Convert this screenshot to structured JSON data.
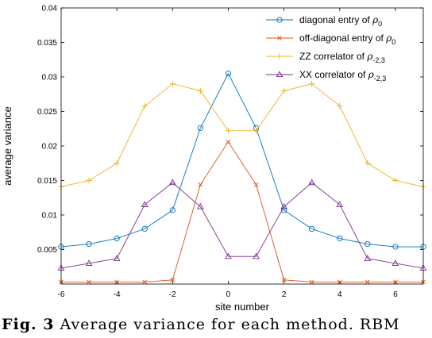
{
  "caption": {
    "prefix": "Fig. 3",
    "text": "Average variance for each method. RBM"
  },
  "chart_data": {
    "type": "line",
    "xlabel": "site number",
    "ylabel": "average variance",
    "xlim": [
      -6,
      7
    ],
    "ylim": [
      0,
      0.04
    ],
    "xticks": [
      -6,
      -4,
      -2,
      0,
      2,
      4,
      6
    ],
    "xtick_labels": [
      "-6",
      "-4",
      "-2",
      "0",
      "2",
      "4",
      "6"
    ],
    "yticks": [
      0.005,
      0.01,
      0.015,
      0.02,
      0.025,
      0.03,
      0.035,
      0.04
    ],
    "ytick_labels": [
      "0.005",
      "0.01",
      "0.015",
      "0.02",
      "0.025",
      "0.03",
      "0.035",
      "0.04"
    ],
    "grid": false,
    "legend_position": "top-right",
    "x": [
      -6,
      -5,
      -4,
      -3,
      -2,
      -1,
      0,
      1,
      2,
      3,
      4,
      5,
      6,
      7
    ],
    "series": [
      {
        "name": "diagonal entry of ρ0",
        "legend_main": "diagonal entry of ",
        "legend_symbol": "ρ",
        "legend_sub": "0",
        "color": "#0072BD",
        "marker": "circle",
        "values": [
          0.0054,
          0.0058,
          0.0066,
          0.008,
          0.0107,
          0.0226,
          0.0305,
          0.0226,
          0.0107,
          0.008,
          0.0066,
          0.0058,
          0.0054,
          0.0054
        ]
      },
      {
        "name": "off-diagonal entry of ρ0",
        "legend_main": "off-diagonal entry of ",
        "legend_symbol": "ρ",
        "legend_sub": "0",
        "color": "#D95319",
        "marker": "x",
        "values": [
          0.0003,
          0.0003,
          0.0003,
          0.0003,
          0.0006,
          0.0144,
          0.0206,
          0.0144,
          0.0006,
          0.0003,
          0.0003,
          0.0003,
          0.0003,
          0.0003
        ]
      },
      {
        "name": "ZZ correlator of ρ-2,3",
        "legend_main": "ZZ correlator of ",
        "legend_symbol": "ρ",
        "legend_sub": "-2,3",
        "color": "#EDB120",
        "marker": "plus",
        "values": [
          0.0141,
          0.015,
          0.0175,
          0.0258,
          0.029,
          0.028,
          0.0222,
          0.0222,
          0.028,
          0.029,
          0.0258,
          0.0175,
          0.015,
          0.0141
        ]
      },
      {
        "name": "XX correlator of ρ-2,3",
        "legend_main": "XX correlator of ",
        "legend_symbol": "ρ",
        "legend_sub": "-2,3",
        "color": "#7E2F8E",
        "marker": "triangle",
        "values": [
          0.0023,
          0.003,
          0.0037,
          0.0115,
          0.0147,
          0.0112,
          0.004,
          0.004,
          0.0112,
          0.0147,
          0.0115,
          0.0037,
          0.003,
          0.0023
        ]
      }
    ]
  }
}
